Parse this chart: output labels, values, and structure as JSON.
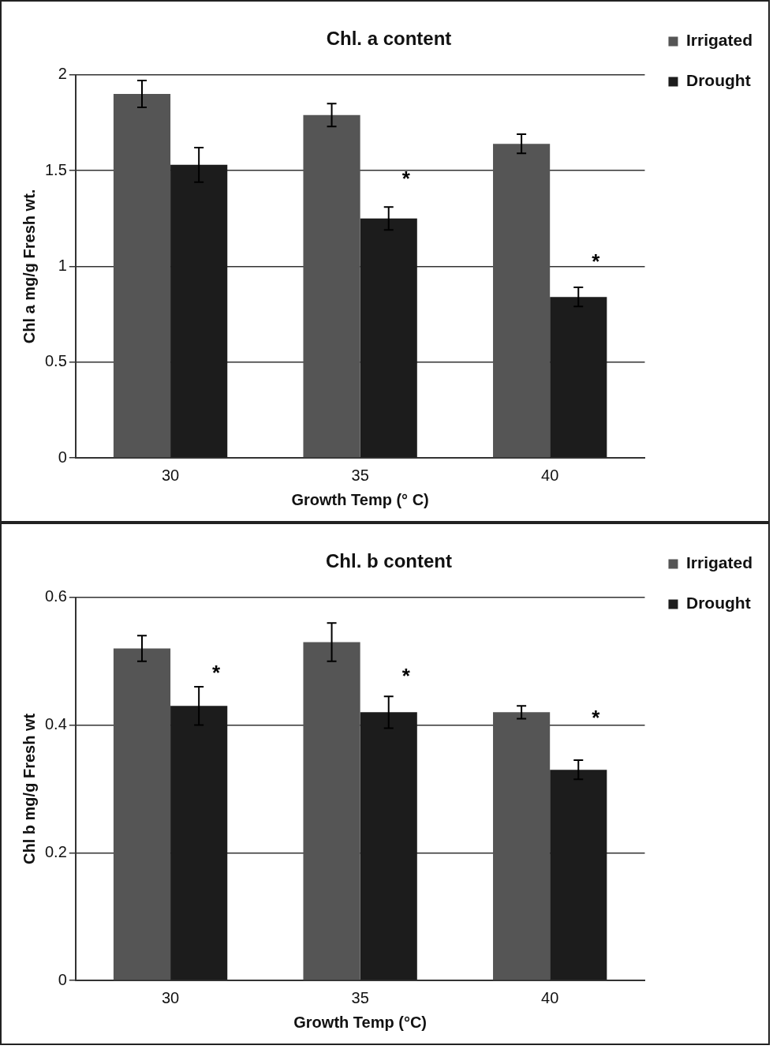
{
  "chart_data": [
    {
      "type": "bar",
      "title": "Chl. a content",
      "xlabel": "Growth Temp (° C)",
      "ylabel": "Chl a mg/g Fresh wt.",
      "categories": [
        "30",
        "35",
        "40"
      ],
      "series": [
        {
          "name": "Irrigated",
          "color": "#555555",
          "values": [
            1.9,
            1.79,
            1.64
          ],
          "errors": [
            0.07,
            0.06,
            0.05
          ]
        },
        {
          "name": "Drought",
          "color": "#1c1c1c",
          "values": [
            1.53,
            1.25,
            0.84
          ],
          "errors": [
            0.09,
            0.06,
            0.05
          ]
        }
      ],
      "ylim": [
        0,
        2
      ],
      "yticks": [
        0,
        0.5,
        1,
        1.5,
        2
      ],
      "grid": "y",
      "legend": "top right",
      "annotations": [
        {
          "text": "*",
          "x": "35",
          "y": 1.45
        },
        {
          "text": "*",
          "x": "40",
          "y": 1.02
        }
      ]
    },
    {
      "type": "bar",
      "title": "Chl. b content",
      "xlabel": "Growth Temp (°C)",
      "ylabel": "Chl b mg/g Fresh wt",
      "categories": [
        "30",
        "35",
        "40"
      ],
      "series": [
        {
          "name": "Irrigated",
          "color": "#555555",
          "values": [
            0.52,
            0.53,
            0.42
          ],
          "errors": [
            0.02,
            0.03,
            0.01
          ]
        },
        {
          "name": "Drought",
          "color": "#1c1c1c",
          "values": [
            0.43,
            0.42,
            0.33
          ],
          "errors": [
            0.03,
            0.025,
            0.015
          ]
        }
      ],
      "ylim": [
        0,
        0.6
      ],
      "yticks": [
        0,
        0.2,
        0.4,
        0.6
      ],
      "grid": "y",
      "legend": "top right",
      "annotations": [
        {
          "text": "*",
          "x": "30",
          "y": 0.48
        },
        {
          "text": "*",
          "x": "35",
          "y": 0.475
        },
        {
          "text": "*",
          "x": "40",
          "y": 0.41
        }
      ]
    }
  ]
}
